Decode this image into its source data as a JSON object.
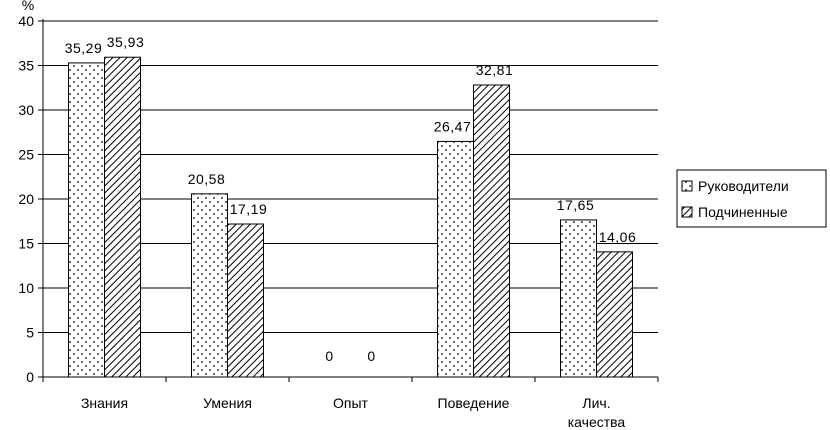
{
  "chart_data": {
    "type": "bar",
    "y_unit": "%",
    "ylim": [
      0,
      40
    ],
    "yticks": [
      "0",
      "5",
      "10",
      "15",
      "20",
      "25",
      "30",
      "35",
      "40"
    ],
    "grid": true,
    "legend_position": "right",
    "categories": [
      "Знания",
      "Умения",
      "Опыт",
      "Поведение",
      "Лич.\nкачества"
    ],
    "series": [
      {
        "name": "Руководители",
        "values": [
          35.29,
          20.58,
          0,
          26.47,
          17.65
        ],
        "labels": [
          "35,29",
          "20,58",
          "0",
          "26,47",
          "17,65"
        ],
        "pattern": "dots"
      },
      {
        "name": "Подчиненные",
        "values": [
          35.93,
          17.19,
          0,
          32.81,
          14.06
        ],
        "labels": [
          "35,93",
          "17,19",
          "0",
          "32,81",
          "14,06"
        ],
        "pattern": "hatch"
      }
    ]
  }
}
